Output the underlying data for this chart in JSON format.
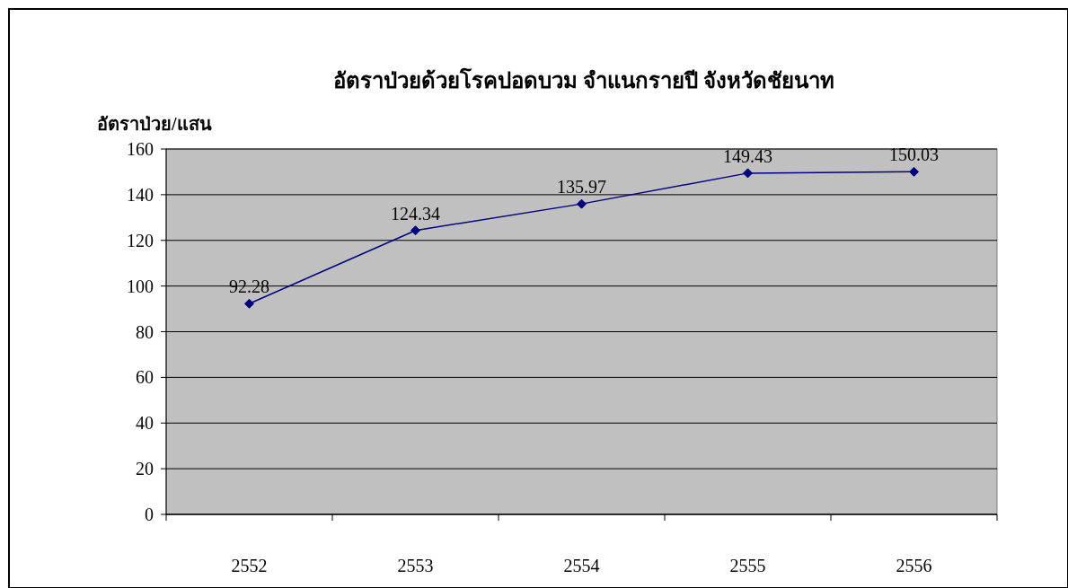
{
  "chart_data": {
    "type": "line",
    "title": "อัตราป่วยด้วยโรคปอดบวม จำแนกรายปี จังหวัดชัยนาท",
    "ylabel": "อัตราป่วย/แสน",
    "categories": [
      "2552",
      "2553",
      "2554",
      "2555",
      "2556"
    ],
    "series": [
      {
        "color": "#000080",
        "values": [
          92.28,
          124.34,
          135.97,
          149.43,
          150.03
        ]
      }
    ],
    "ylim": [
      0,
      160
    ],
    "yticks": [
      0,
      20,
      40,
      60,
      80,
      100,
      120,
      140,
      160
    ],
    "grid": "y",
    "marker": "diamond",
    "line_style": "solid",
    "data_labels": true
  }
}
